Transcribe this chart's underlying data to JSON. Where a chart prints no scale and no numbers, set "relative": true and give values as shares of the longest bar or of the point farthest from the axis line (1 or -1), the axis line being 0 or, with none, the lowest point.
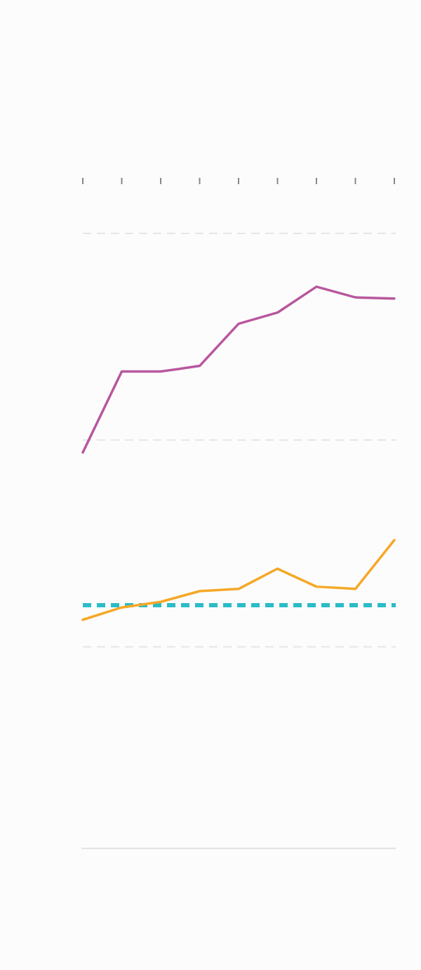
{
  "chart_data": {
    "type": "line",
    "relative": true,
    "categories": [
      null,
      null,
      null,
      null,
      null,
      null,
      null,
      null,
      null
    ],
    "series": [
      {
        "color": "#b8579e",
        "values": [
          0.705,
          0.849,
          0.849,
          0.859,
          0.934,
          0.954,
          1,
          0.981,
          0.979
        ]
      },
      {
        "color": "#f5a827",
        "values": [
          0.407,
          0.429,
          0.439,
          0.458,
          0.462,
          0.498,
          0.466,
          0.462,
          0.549
        ]
      }
    ],
    "ref_lines": [
      {
        "axis": "y",
        "value": 0.359,
        "color": "#e6e6e6",
        "line_style": "dashed"
      },
      {
        "axis": "y",
        "value": 0.727,
        "color": "#e6e6e6",
        "line_style": "dashed"
      },
      {
        "axis": "y",
        "value": 1.095,
        "color": "#e6e6e6",
        "line_style": "dashed"
      },
      {
        "axis": "y",
        "value": 0.433,
        "color": "#2bbcc8",
        "line_style": "dashed"
      }
    ]
  }
}
